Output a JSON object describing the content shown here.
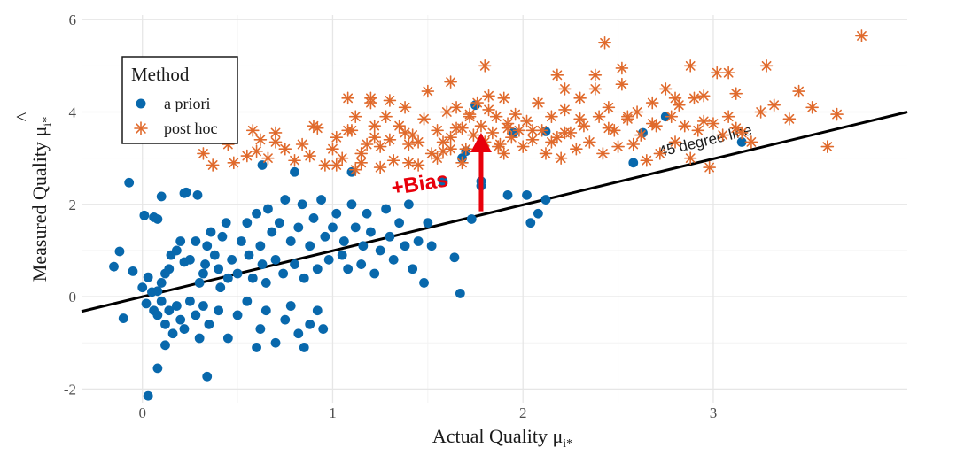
{
  "colors": {
    "a_priori": "#0868ac",
    "post_hoc": "#e06a2c",
    "bias_arrow": "#e8000b",
    "reference_line": "#000000",
    "grid_major": "#e6e6e6",
    "grid_minor": "#f3f3f3"
  },
  "chart_data": {
    "type": "scatter",
    "xlabel": "Actual Quality μ",
    "xlabel_sub": "i*",
    "ylabel": "Measured Quality μ",
    "ylabel_hat": "^",
    "ylabel_sub": "i*",
    "xlim": [
      -0.32,
      4.02
    ],
    "ylim": [
      -2.3,
      6.1
    ],
    "x_ticks": [
      {
        "value": 0,
        "label": "0"
      },
      {
        "value": 1,
        "label": "1"
      },
      {
        "value": 2,
        "label": "2"
      },
      {
        "value": 3,
        "label": "3"
      }
    ],
    "y_ticks": [
      {
        "value": -2,
        "label": "-2"
      },
      {
        "value": 0,
        "label": "0"
      },
      {
        "value": 2,
        "label": "2"
      },
      {
        "value": 4,
        "label": "4"
      },
      {
        "value": 6,
        "label": "6"
      }
    ],
    "grid": true,
    "legend": {
      "title": "Method",
      "position": "top-left",
      "entries": [
        {
          "label": "a priori",
          "series": "a_priori",
          "marker": "circle"
        },
        {
          "label": "post hoc",
          "series": "post_hoc",
          "marker": "asterisk"
        }
      ]
    },
    "reference_line": {
      "label": "45 degree line",
      "x1": -0.32,
      "y1": -0.32,
      "x2": 4.02,
      "y2": 4.0
    },
    "annotation": {
      "label": "+Bias",
      "arrow_x": 1.78,
      "arrow_from_y": 1.85,
      "arrow_to_y": 3.55
    },
    "series": [
      {
        "id": "a_priori",
        "name": "a priori",
        "marker": "circle",
        "points": [
          [
            -0.07,
            2.47
          ],
          [
            0.01,
            1.76
          ],
          [
            0.06,
            1.72
          ],
          [
            0.08,
            1.68
          ],
          [
            0.22,
            2.24
          ],
          [
            0.29,
            2.2
          ],
          [
            0.23,
            2.26
          ],
          [
            0.1,
            2.17
          ],
          [
            -0.15,
            0.65
          ],
          [
            -0.12,
            0.98
          ],
          [
            -0.05,
            0.55
          ],
          [
            0.03,
            0.42
          ],
          [
            0.0,
            0.2
          ],
          [
            0.05,
            0.1
          ],
          [
            0.08,
            0.12
          ],
          [
            0.1,
            0.3
          ],
          [
            0.12,
            0.5
          ],
          [
            0.14,
            0.6
          ],
          [
            0.15,
            0.9
          ],
          [
            0.18,
            1.0
          ],
          [
            0.2,
            1.2
          ],
          [
            0.22,
            0.75
          ],
          [
            0.25,
            0.8
          ],
          [
            0.28,
            1.2
          ],
          [
            0.3,
            0.3
          ],
          [
            0.32,
            0.5
          ],
          [
            0.33,
            0.7
          ],
          [
            0.34,
            1.1
          ],
          [
            0.36,
            1.4
          ],
          [
            0.38,
            0.9
          ],
          [
            0.4,
            0.6
          ],
          [
            0.41,
            0.2
          ],
          [
            0.42,
            1.3
          ],
          [
            0.44,
            1.6
          ],
          [
            0.45,
            0.4
          ],
          [
            0.47,
            0.8
          ],
          [
            0.5,
            0.5
          ],
          [
            0.52,
            1.2
          ],
          [
            0.55,
            1.6
          ],
          [
            0.56,
            0.9
          ],
          [
            0.58,
            0.4
          ],
          [
            0.6,
            1.8
          ],
          [
            0.62,
            1.1
          ],
          [
            0.63,
            0.7
          ],
          [
            0.65,
            0.3
          ],
          [
            0.66,
            1.9
          ],
          [
            0.68,
            1.4
          ],
          [
            0.7,
            0.8
          ],
          [
            0.72,
            1.6
          ],
          [
            0.74,
            0.5
          ],
          [
            0.75,
            2.1
          ],
          [
            0.78,
            1.2
          ],
          [
            0.8,
            0.7
          ],
          [
            0.82,
            1.5
          ],
          [
            0.84,
            2.0
          ],
          [
            0.85,
            0.4
          ],
          [
            0.88,
            1.1
          ],
          [
            0.9,
            1.7
          ],
          [
            0.92,
            0.6
          ],
          [
            0.94,
            2.1
          ],
          [
            0.96,
            1.3
          ],
          [
            0.98,
            0.8
          ],
          [
            1.0,
            1.5
          ],
          [
            1.02,
            1.8
          ],
          [
            1.05,
            0.9
          ],
          [
            1.06,
            1.2
          ],
          [
            1.08,
            0.6
          ],
          [
            1.1,
            2.0
          ],
          [
            1.12,
            1.5
          ],
          [
            1.15,
            0.7
          ],
          [
            1.16,
            1.1
          ],
          [
            1.18,
            1.8
          ],
          [
            1.2,
            1.4
          ],
          [
            1.22,
            0.5
          ],
          [
            1.25,
            1.0
          ],
          [
            1.28,
            1.9
          ],
          [
            1.3,
            1.3
          ],
          [
            1.32,
            0.8
          ],
          [
            1.35,
            1.6
          ],
          [
            1.38,
            1.1
          ],
          [
            1.4,
            2.0
          ],
          [
            1.42,
            0.6
          ],
          [
            1.45,
            1.2
          ],
          [
            1.48,
            0.3
          ],
          [
            1.5,
            1.6
          ],
          [
            1.52,
            1.1
          ],
          [
            -0.1,
            -0.47
          ],
          [
            0.02,
            -0.15
          ],
          [
            0.06,
            -0.3
          ],
          [
            0.08,
            -0.4
          ],
          [
            0.1,
            -0.1
          ],
          [
            0.12,
            -0.6
          ],
          [
            0.14,
            -0.3
          ],
          [
            0.16,
            -0.8
          ],
          [
            0.18,
            -0.2
          ],
          [
            0.2,
            -0.5
          ],
          [
            0.22,
            -0.7
          ],
          [
            0.25,
            -0.1
          ],
          [
            0.28,
            -0.4
          ],
          [
            0.3,
            -0.9
          ],
          [
            0.32,
            -0.2
          ],
          [
            0.35,
            -0.6
          ],
          [
            0.4,
            -0.3
          ],
          [
            0.45,
            -0.9
          ],
          [
            0.5,
            -0.4
          ],
          [
            0.55,
            -0.1
          ],
          [
            0.6,
            -1.1
          ],
          [
            0.62,
            -0.7
          ],
          [
            0.65,
            -0.3
          ],
          [
            0.7,
            -1.0
          ],
          [
            0.75,
            -0.5
          ],
          [
            0.78,
            -0.2
          ],
          [
            0.82,
            -0.8
          ],
          [
            0.85,
            -1.1
          ],
          [
            0.88,
            -0.6
          ],
          [
            0.92,
            -0.3
          ],
          [
            0.95,
            -0.7
          ],
          [
            0.03,
            -2.15
          ],
          [
            0.08,
            -1.55
          ],
          [
            0.12,
            -1.05
          ],
          [
            0.34,
            -1.73
          ],
          [
            1.58,
            2.5
          ],
          [
            1.64,
            0.85
          ],
          [
            1.67,
            0.07
          ],
          [
            1.73,
            1.68
          ],
          [
            1.75,
            4.15
          ],
          [
            1.78,
            2.4
          ],
          [
            1.92,
            2.2
          ],
          [
            2.02,
            2.2
          ],
          [
            2.04,
            1.6
          ],
          [
            2.08,
            1.8
          ],
          [
            2.12,
            2.1
          ],
          [
            1.95,
            3.55
          ],
          [
            2.12,
            3.58
          ],
          [
            2.58,
            2.9
          ],
          [
            2.63,
            3.55
          ],
          [
            2.75,
            3.9
          ],
          [
            3.15,
            3.35
          ],
          [
            1.68,
            3.0
          ],
          [
            1.1,
            2.7
          ],
          [
            0.63,
            2.85
          ],
          [
            0.8,
            2.7
          ],
          [
            1.78,
            2.5
          ],
          [
            1.7,
            3.15
          ]
        ]
      },
      {
        "id": "post_hoc",
        "name": "post hoc",
        "marker": "asterisk",
        "points": [
          [
            0.32,
            3.1
          ],
          [
            0.37,
            2.85
          ],
          [
            0.45,
            3.3
          ],
          [
            0.48,
            2.9
          ],
          [
            0.55,
            3.05
          ],
          [
            0.58,
            3.6
          ],
          [
            0.62,
            3.4
          ],
          [
            0.66,
            3.0
          ],
          [
            0.7,
            3.55
          ],
          [
            0.75,
            3.2
          ],
          [
            0.8,
            2.95
          ],
          [
            0.84,
            3.3
          ],
          [
            0.88,
            3.05
          ],
          [
            0.92,
            3.65
          ],
          [
            0.96,
            2.85
          ],
          [
            1.0,
            3.2
          ],
          [
            1.02,
            3.45
          ],
          [
            1.05,
            3.0
          ],
          [
            1.08,
            4.3
          ],
          [
            1.1,
            3.6
          ],
          [
            1.12,
            3.9
          ],
          [
            1.15,
            2.9
          ],
          [
            1.18,
            3.3
          ],
          [
            1.2,
            4.2
          ],
          [
            1.22,
            3.7
          ],
          [
            1.25,
            3.25
          ],
          [
            1.28,
            3.9
          ],
          [
            1.3,
            3.4
          ],
          [
            1.32,
            2.95
          ],
          [
            1.35,
            3.7
          ],
          [
            1.38,
            4.1
          ],
          [
            1.4,
            3.3
          ],
          [
            1.42,
            3.5
          ],
          [
            1.45,
            2.85
          ],
          [
            1.48,
            3.85
          ],
          [
            1.5,
            4.45
          ],
          [
            1.52,
            3.1
          ],
          [
            1.55,
            3.6
          ],
          [
            1.58,
            3.35
          ],
          [
            1.6,
            4.0
          ],
          [
            1.62,
            3.45
          ],
          [
            1.65,
            4.1
          ],
          [
            1.68,
            3.65
          ],
          [
            1.7,
            3.2
          ],
          [
            1.72,
            3.9
          ],
          [
            1.74,
            3.5
          ],
          [
            1.76,
            4.2
          ],
          [
            1.78,
            3.7
          ],
          [
            1.8,
            3.35
          ],
          [
            1.82,
            4.05
          ],
          [
            1.84,
            3.55
          ],
          [
            1.86,
            3.9
          ],
          [
            1.88,
            3.3
          ],
          [
            1.9,
            4.3
          ],
          [
            1.92,
            3.75
          ],
          [
            1.94,
            3.45
          ],
          [
            1.96,
            3.95
          ],
          [
            1.98,
            3.6
          ],
          [
            2.0,
            3.25
          ],
          [
            2.02,
            3.8
          ],
          [
            2.05,
            3.4
          ],
          [
            2.08,
            4.2
          ],
          [
            2.1,
            3.6
          ],
          [
            2.12,
            3.1
          ],
          [
            2.15,
            3.9
          ],
          [
            2.18,
            3.45
          ],
          [
            2.2,
            3.0
          ],
          [
            2.22,
            4.05
          ],
          [
            2.25,
            3.55
          ],
          [
            2.28,
            3.2
          ],
          [
            2.3,
            4.3
          ],
          [
            2.32,
            3.7
          ],
          [
            2.35,
            3.35
          ],
          [
            2.38,
            4.5
          ],
          [
            2.4,
            3.9
          ],
          [
            2.42,
            3.1
          ],
          [
            2.45,
            4.1
          ],
          [
            2.48,
            3.6
          ],
          [
            2.5,
            3.25
          ],
          [
            2.52,
            4.6
          ],
          [
            2.55,
            3.85
          ],
          [
            2.58,
            3.3
          ],
          [
            2.6,
            4.0
          ],
          [
            2.62,
            3.5
          ],
          [
            2.65,
            2.95
          ],
          [
            2.68,
            4.2
          ],
          [
            2.7,
            3.7
          ],
          [
            2.72,
            3.1
          ],
          [
            2.75,
            4.5
          ],
          [
            2.78,
            3.9
          ],
          [
            2.8,
            3.35
          ],
          [
            2.82,
            4.15
          ],
          [
            2.85,
            3.7
          ],
          [
            2.88,
            3.0
          ],
          [
            2.9,
            4.3
          ],
          [
            2.92,
            3.6
          ],
          [
            2.95,
            3.8
          ],
          [
            2.98,
            2.8
          ],
          [
            3.02,
            4.85
          ],
          [
            3.05,
            3.5
          ],
          [
            3.08,
            3.9
          ],
          [
            3.12,
            4.4
          ],
          [
            3.15,
            3.55
          ],
          [
            3.2,
            3.35
          ],
          [
            3.25,
            4.0
          ],
          [
            3.28,
            5.0
          ],
          [
            3.32,
            4.15
          ],
          [
            3.4,
            3.85
          ],
          [
            3.45,
            4.45
          ],
          [
            3.52,
            4.1
          ],
          [
            3.6,
            3.25
          ],
          [
            3.65,
            3.95
          ],
          [
            3.78,
            5.65
          ],
          [
            2.88,
            5.0
          ],
          [
            3.08,
            4.85
          ],
          [
            2.52,
            4.95
          ],
          [
            2.43,
            5.5
          ],
          [
            2.38,
            4.8
          ],
          [
            2.18,
            4.8
          ],
          [
            2.22,
            4.5
          ],
          [
            1.8,
            5.0
          ],
          [
            1.62,
            4.65
          ],
          [
            1.2,
            4.3
          ],
          [
            1.3,
            4.25
          ],
          [
            1.08,
            3.6
          ],
          [
            1.02,
            2.85
          ],
          [
            1.12,
            2.75
          ],
          [
            1.22,
            3.45
          ],
          [
            1.38,
            3.55
          ],
          [
            1.45,
            3.35
          ],
          [
            1.55,
            3.0
          ],
          [
            1.62,
            3.2
          ],
          [
            1.65,
            3.65
          ],
          [
            1.72,
            3.95
          ],
          [
            1.82,
            4.35
          ],
          [
            1.87,
            3.25
          ],
          [
            1.92,
            3.65
          ],
          [
            2.05,
            3.6
          ],
          [
            2.15,
            3.35
          ],
          [
            2.22,
            3.55
          ],
          [
            2.3,
            3.85
          ],
          [
            2.45,
            3.65
          ],
          [
            2.55,
            3.9
          ],
          [
            2.68,
            3.75
          ],
          [
            2.8,
            4.3
          ],
          [
            2.95,
            4.35
          ],
          [
            3.0,
            3.75
          ],
          [
            3.12,
            3.65
          ],
          [
            1.15,
            3.1
          ],
          [
            1.25,
            2.8
          ],
          [
            1.4,
            2.9
          ],
          [
            0.9,
            3.7
          ],
          [
            0.7,
            3.35
          ],
          [
            0.6,
            3.15
          ],
          [
            0.4,
            3.5
          ],
          [
            1.58,
            3.15
          ],
          [
            1.68,
            2.9
          ],
          [
            1.9,
            3.1
          ]
        ]
      }
    ]
  }
}
